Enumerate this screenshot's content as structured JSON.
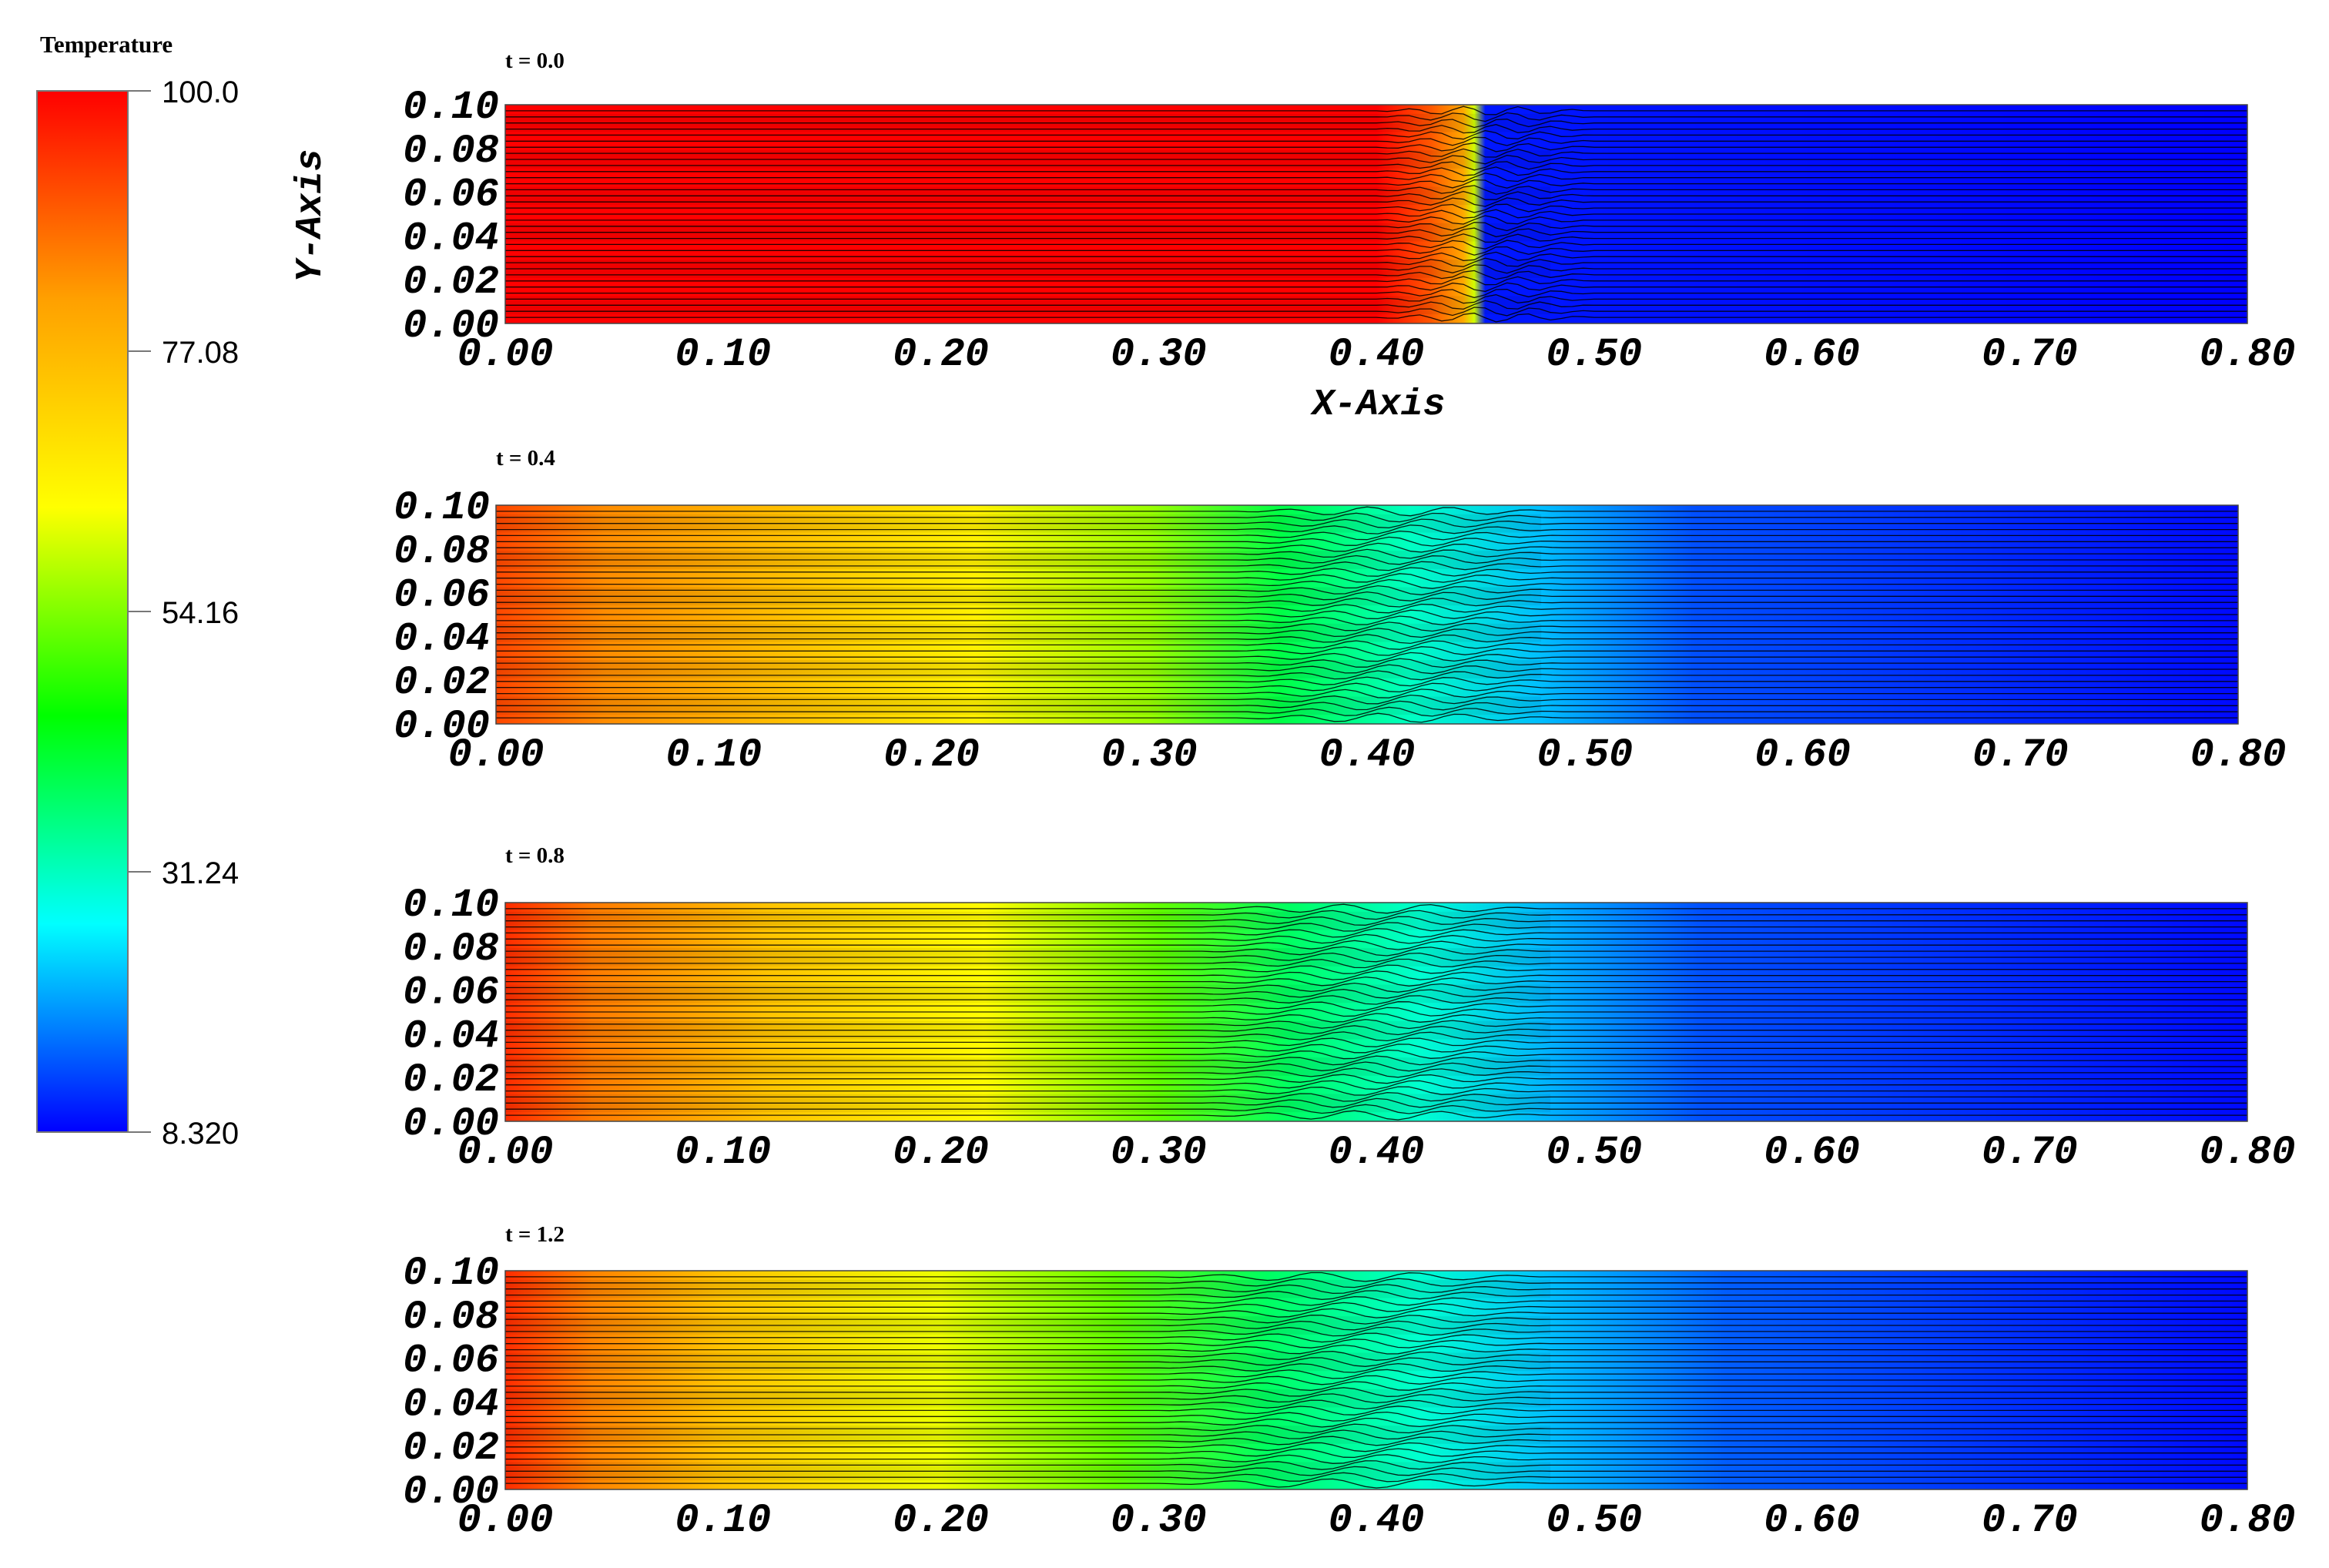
{
  "colorbar": {
    "title": "Temperature",
    "range": [
      8.32,
      100.0
    ],
    "tick_labels": [
      "100.0",
      "77.08",
      "54.16",
      "31.24",
      "8.320"
    ],
    "colormap": [
      "#ff0000",
      "#ffa000",
      "#ffff00",
      "#00ff00",
      "#00ffff",
      "#0000ff"
    ]
  },
  "chart_data": [
    {
      "type": "heatmap",
      "title": "t = 0.0",
      "xlabel": "X-Axis",
      "ylabel": "Y-Axis",
      "xlim": [
        0.0,
        0.8
      ],
      "ylim": [
        0.0,
        0.1
      ],
      "x_tick_labels": [
        "0.00",
        "0.10",
        "0.20",
        "0.30",
        "0.40",
        "0.50",
        "0.60",
        "0.70",
        "0.80"
      ],
      "y_tick_labels": [
        "0.10",
        "0.08",
        "0.06",
        "0.04",
        "0.02",
        "0.00"
      ],
      "temperature_profile": {
        "x": [
          0.0,
          0.4,
          0.425,
          0.44,
          0.445,
          0.45,
          0.8
        ],
        "value": [
          100,
          100,
          90,
          80,
          60,
          10,
          8.32
        ]
      },
      "contours": "horizontal lines with wave disturbance between x = 0.40 and 0.50"
    },
    {
      "type": "heatmap",
      "title": "t = 0.4",
      "xlabel": "",
      "ylabel": "",
      "xlim": [
        0.0,
        0.8
      ],
      "ylim": [
        0.0,
        0.1
      ],
      "x_tick_labels": [
        "0.00",
        "0.10",
        "0.20",
        "0.30",
        "0.40",
        "0.50",
        "0.60",
        "0.70",
        "0.80"
      ],
      "y_tick_labels": [
        "0.10",
        "0.08",
        "0.06",
        "0.04",
        "0.02",
        "0.00"
      ],
      "temperature_profile": {
        "x": [
          0.0,
          0.05,
          0.12,
          0.22,
          0.3,
          0.36,
          0.42,
          0.48,
          0.55,
          0.8
        ],
        "value": [
          92,
          84,
          77,
          66,
          56,
          40,
          31,
          22,
          14,
          9
        ]
      },
      "contours": "horizontal lines with wave disturbance between x = 0.34 and 0.49"
    },
    {
      "type": "heatmap",
      "title": "t = 0.8",
      "xlabel": "",
      "ylabel": "",
      "xlim": [
        0.0,
        0.8
      ],
      "ylim": [
        0.0,
        0.1
      ],
      "x_tick_labels": [
        "0.00",
        "0.10",
        "0.20",
        "0.30",
        "0.40",
        "0.50",
        "0.60",
        "0.70",
        "0.80"
      ],
      "y_tick_labels": [
        "0.10",
        "0.08",
        "0.06",
        "0.04",
        "0.02",
        "0.00"
      ],
      "temperature_profile": {
        "x": [
          0.0,
          0.04,
          0.12,
          0.22,
          0.3,
          0.36,
          0.42,
          0.48,
          0.55,
          0.8
        ],
        "value": [
          95,
          86,
          75,
          64,
          52,
          38,
          30,
          21,
          14,
          9
        ]
      },
      "contours": "horizontal lines with wave disturbance between x = 0.32 and 0.48"
    },
    {
      "type": "heatmap",
      "title": "t = 1.2",
      "xlabel": "",
      "ylabel": "",
      "xlim": [
        0.0,
        0.8
      ],
      "ylim": [
        0.0,
        0.1
      ],
      "x_tick_labels": [
        "0.00",
        "0.10",
        "0.20",
        "0.30",
        "0.40",
        "0.50",
        "0.60",
        "0.70",
        "0.80"
      ],
      "y_tick_labels": [
        "0.10",
        "0.08",
        "0.06",
        "0.04",
        "0.02",
        "0.00"
      ],
      "temperature_profile": {
        "x": [
          0.0,
          0.04,
          0.1,
          0.2,
          0.28,
          0.35,
          0.42,
          0.48,
          0.56,
          0.8
        ],
        "value": [
          95,
          85,
          75,
          62,
          52,
          38,
          30,
          22,
          15,
          9
        ]
      },
      "contours": "horizontal lines with wave disturbance between x = 0.30 and 0.48"
    }
  ]
}
